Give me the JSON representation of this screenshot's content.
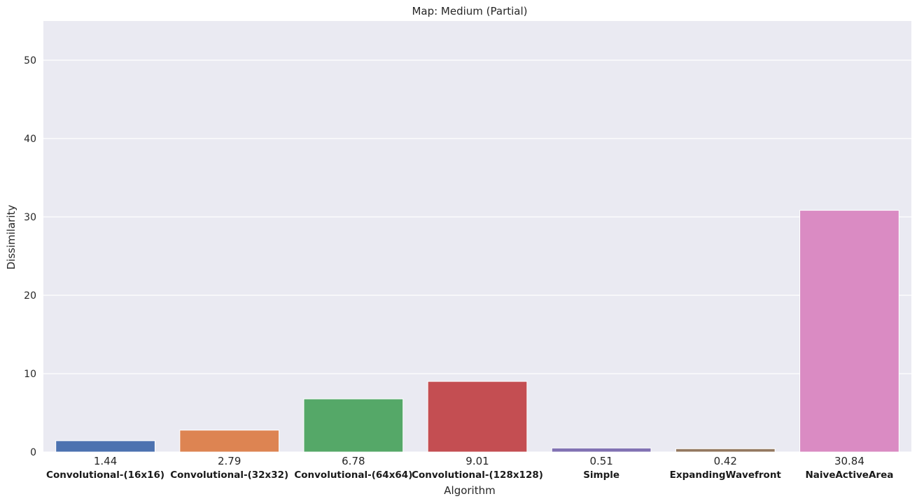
{
  "chart_data": {
    "type": "bar",
    "title": "Map: Medium (Partial)",
    "xlabel": "Algorithm",
    "ylabel": "Dissimilarity",
    "ylim": [
      0,
      55
    ],
    "yticks": [
      0,
      10,
      20,
      30,
      40,
      50
    ],
    "grid": true,
    "categories": [
      "Convolutional-(16x16)",
      "Convolutional-(32x32)",
      "Convolutional-(64x64)",
      "Convolutional-(128x128)",
      "Simple",
      "ExpandingWavefront",
      "NaiveActiveArea"
    ],
    "values": [
      1.44,
      2.79,
      6.78,
      9.01,
      0.51,
      0.42,
      30.84
    ],
    "value_labels": [
      "1.44",
      "2.79",
      "6.78",
      "9.01",
      "0.51",
      "0.42",
      "30.84"
    ],
    "colors": [
      "#4c72b0",
      "#dd8452",
      "#55a868",
      "#c44e52",
      "#8172b3",
      "#937860",
      "#da8bc3"
    ],
    "background": "#eaeaf2"
  }
}
